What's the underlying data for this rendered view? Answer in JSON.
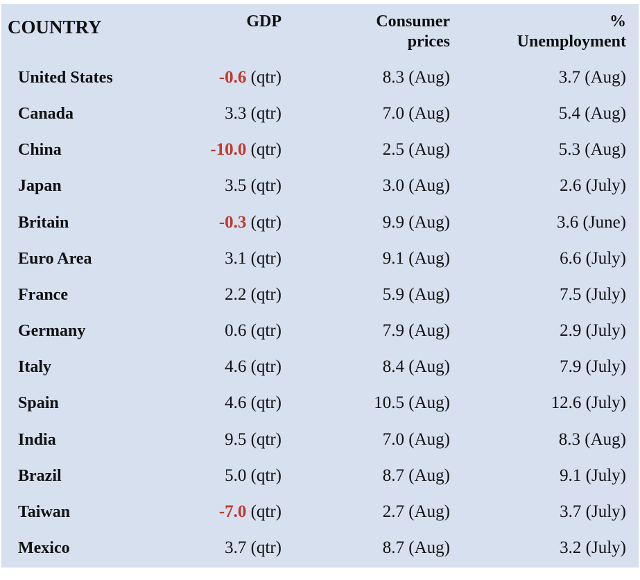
{
  "header": {
    "country": "COUNTRY",
    "gdp": "GDP",
    "cpi_line1": "Consumer",
    "cpi_line2": "prices",
    "unemp_line1": "%",
    "unemp_line2": "Unemployment"
  },
  "colors": {
    "background": "#d7e0ef",
    "negative": "#c0392b"
  },
  "rows": [
    {
      "country": "United States",
      "gdp_value": "-0.6",
      "gdp_negative": true,
      "gdp_period": "(qtr)",
      "cpi": "8.3 (Aug)",
      "unemp": "3.7 (Aug)"
    },
    {
      "country": "Canada",
      "gdp_value": "3.3",
      "gdp_negative": false,
      "gdp_period": "(qtr)",
      "cpi": "7.0 (Aug)",
      "unemp": "5.4 (Aug)"
    },
    {
      "country": "China",
      "gdp_value": "-10.0",
      "gdp_negative": true,
      "gdp_period": "(qtr)",
      "cpi": "2.5 (Aug)",
      "unemp": "5.3 (Aug)"
    },
    {
      "country": "Japan",
      "gdp_value": "3.5",
      "gdp_negative": false,
      "gdp_period": "(qtr)",
      "cpi": "3.0 (Aug)",
      "unemp": "2.6 (July)"
    },
    {
      "country": "Britain",
      "gdp_value": "-0.3",
      "gdp_negative": true,
      "gdp_period": "(qtr)",
      "cpi": "9.9 (Aug)",
      "unemp": "3.6 (June)"
    },
    {
      "country": "Euro Area",
      "gdp_value": "3.1",
      "gdp_negative": false,
      "gdp_period": "(qtr)",
      "cpi": "9.1 (Aug)",
      "unemp": "6.6 (July)"
    },
    {
      "country": "France",
      "gdp_value": "2.2",
      "gdp_negative": false,
      "gdp_period": "(qtr)",
      "cpi": "5.9 (Aug)",
      "unemp": "7.5 (July)"
    },
    {
      "country": "Germany",
      "gdp_value": "0.6",
      "gdp_negative": false,
      "gdp_period": "(qtr)",
      "cpi": "7.9 (Aug)",
      "unemp": "2.9 (July)"
    },
    {
      "country": "Italy",
      "gdp_value": "4.6",
      "gdp_negative": false,
      "gdp_period": "(qtr)",
      "cpi": "8.4 (Aug)",
      "unemp": "7.9 (July)"
    },
    {
      "country": "Spain",
      "gdp_value": "4.6",
      "gdp_negative": false,
      "gdp_period": "(qtr)",
      "cpi": "10.5 (Aug)",
      "unemp": "12.6 (July)"
    },
    {
      "country": "India",
      "gdp_value": "9.5",
      "gdp_negative": false,
      "gdp_period": "(qtr)",
      "cpi": "7.0 (Aug)",
      "unemp": "8.3 (Aug)"
    },
    {
      "country": "Brazil",
      "gdp_value": "5.0",
      "gdp_negative": false,
      "gdp_period": "(qtr)",
      "cpi": "8.7 (Aug)",
      "unemp": "9.1 (July)"
    },
    {
      "country": "Taiwan",
      "gdp_value": "-7.0",
      "gdp_negative": true,
      "gdp_period": "(qtr)",
      "cpi": "2.7 (Aug)",
      "unemp": "3.7 (July)"
    },
    {
      "country": "Mexico",
      "gdp_value": "3.7",
      "gdp_negative": false,
      "gdp_period": "(qtr)",
      "cpi": "8.7 (Aug)",
      "unemp": "3.2 (July)"
    }
  ]
}
